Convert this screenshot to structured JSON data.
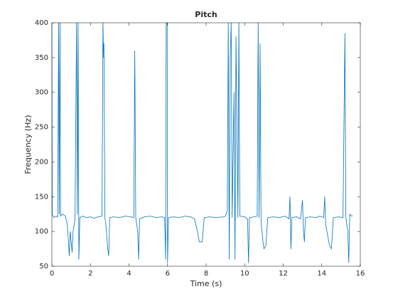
{
  "chart_data": {
    "type": "line",
    "title": "Pitch",
    "x_label": "Time (s)",
    "y_label": "Frequency (Hz)",
    "x": [
      0.0,
      0.02,
      0.1,
      0.2,
      0.3,
      0.35,
      0.38,
      0.42,
      0.45,
      0.55,
      0.7,
      0.8,
      0.85,
      0.9,
      0.95,
      1.05,
      1.1,
      1.2,
      1.28,
      1.32,
      1.36,
      1.4,
      1.45,
      1.6,
      1.8,
      2.0,
      2.2,
      2.4,
      2.6,
      2.65,
      2.68,
      2.7,
      2.75,
      2.8,
      2.9,
      2.95,
      3.0,
      3.2,
      3.5,
      3.8,
      4.1,
      4.25,
      4.3,
      4.35,
      4.45,
      4.5,
      4.55,
      4.8,
      5.1,
      5.4,
      5.7,
      5.85,
      5.9,
      5.93,
      5.98,
      6.0,
      6.05,
      6.3,
      6.6,
      6.9,
      7.2,
      7.4,
      7.55,
      7.65,
      7.8,
      7.9,
      8.2,
      8.5,
      8.9,
      9.0,
      9.1,
      9.15,
      9.2,
      9.25,
      9.3,
      9.35,
      9.45,
      9.5,
      9.55,
      9.6,
      9.65,
      9.7,
      9.75,
      10.0,
      10.15,
      10.2,
      10.25,
      10.5,
      10.65,
      10.7,
      10.75,
      10.8,
      10.85,
      10.95,
      11.0,
      11.1,
      11.2,
      11.5,
      11.8,
      12.1,
      12.3,
      12.35,
      12.4,
      12.45,
      12.7,
      12.9,
      13.0,
      13.05,
      13.1,
      13.15,
      13.4,
      13.7,
      13.9,
      14.1,
      14.15,
      14.2,
      14.4,
      14.5,
      14.6,
      14.9,
      15.1,
      15.2,
      15.25,
      15.35,
      15.4,
      15.45,
      15.55,
      15.6
    ],
    "series": [
      {
        "name": "Pitch",
        "color": "#0072bd",
        "values": [
          400,
          125,
          120,
          122,
          121,
          400,
          125,
          400,
          122,
          125,
          122,
          110,
          90,
          65,
          100,
          70,
          100,
          118,
          400,
          125,
          400,
          60,
          120,
          122,
          120,
          121,
          119,
          121,
          122,
          400,
          350,
          370,
          120,
          110,
          75,
          65,
          120,
          121,
          120,
          122,
          121,
          120,
          360,
          120,
          100,
          60,
          118,
          121,
          122,
          120,
          121,
          120,
          60,
          400,
          400,
          55,
          120,
          121,
          120,
          122,
          121,
          118,
          100,
          85,
          85,
          120,
          121,
          120,
          121,
          122,
          130,
          400,
          60,
          350,
          400,
          120,
          300,
          60,
          380,
          250,
          120,
          400,
          122,
          121,
          118,
          55,
          120,
          121,
          122,
          400,
          120,
          370,
          115,
          85,
          75,
          80,
          120,
          121,
          120,
          122,
          118,
          150,
          75,
          120,
          121,
          118,
          145,
          100,
          85,
          120,
          121,
          120,
          122,
          120,
          150,
          110,
          80,
          75,
          120,
          121,
          120,
          385,
          120,
          100,
          55,
          125,
          122,
          123
        ]
      }
    ],
    "xlim": [
      0,
      16
    ],
    "xticks": [
      0,
      2,
      4,
      6,
      8,
      10,
      12,
      14,
      16
    ],
    "ylim": [
      50,
      400
    ],
    "yticks": [
      50,
      100,
      150,
      200,
      250,
      300,
      350,
      400
    ]
  }
}
